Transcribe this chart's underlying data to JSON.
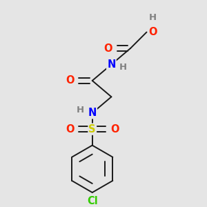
{
  "background_color": "#e5e5e5",
  "atoms": {
    "Cl": {
      "color": "#33cc00",
      "fontsize": 10.5
    },
    "S": {
      "color": "#cccc00",
      "fontsize": 10.5
    },
    "O": {
      "color": "#ff2200",
      "fontsize": 10.5
    },
    "N": {
      "color": "#0000ff",
      "fontsize": 10.5
    },
    "H": {
      "color": "#808080",
      "fontsize": 9.5
    }
  },
  "bond_color": "#1a1a1a",
  "bond_lw": 1.4
}
